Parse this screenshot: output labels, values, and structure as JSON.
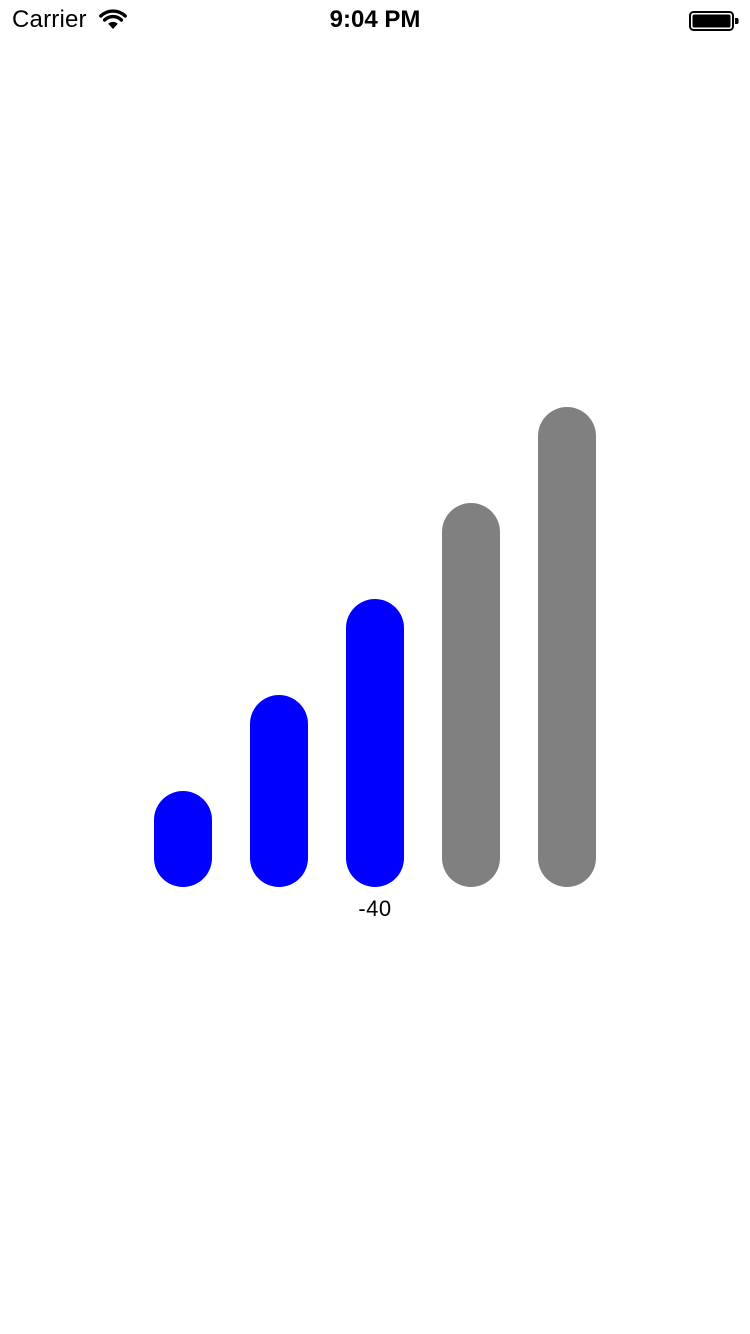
{
  "status_bar": {
    "carrier": "Carrier",
    "time": "9:04 PM",
    "wifi_icon": "wifi-icon",
    "battery_icon": "battery-icon",
    "battery_level": 1.0
  },
  "signal_meter": {
    "value_label": "-40",
    "total_bars": 5,
    "active_bars": 3,
    "colors": {
      "active": "#0000ff",
      "inactive": "#808080"
    }
  }
}
